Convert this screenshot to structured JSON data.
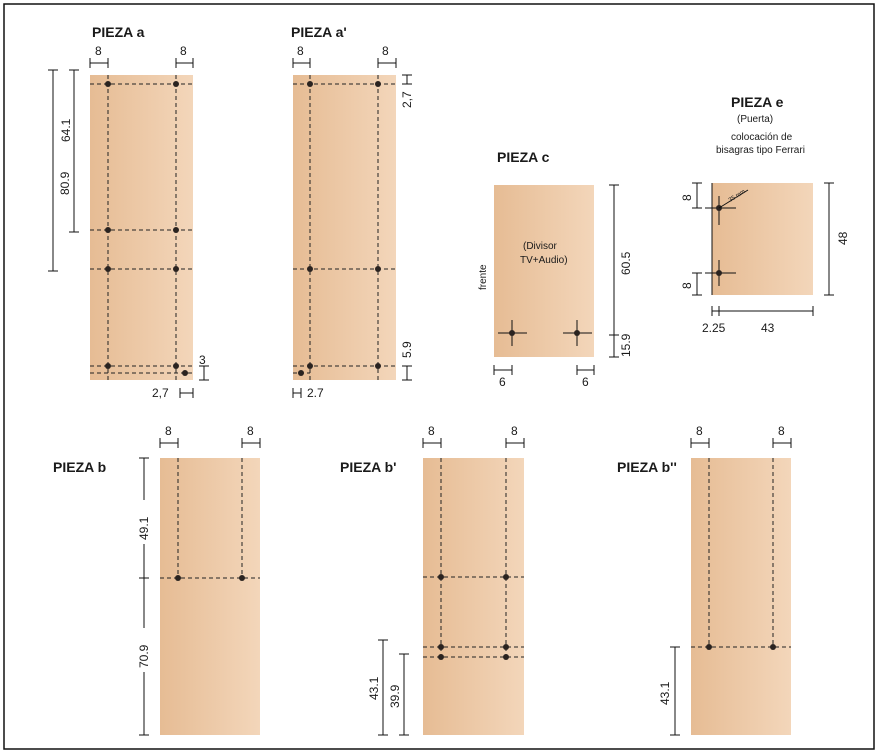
{
  "pieces": {
    "a": {
      "title": "PIEZA a",
      "dim_left": "8",
      "dim_right": "8",
      "dim_h1": "80.9",
      "dim_h2": "64.1",
      "dim_bot1": "3",
      "dim_bot2": "2,7"
    },
    "a2": {
      "title": "PIEZA a'",
      "dim_left": "8",
      "dim_right": "8",
      "dim_top": "2,7",
      "dim_bot1": "5.9",
      "dim_bot2": "2.7"
    },
    "c": {
      "title": "PIEZA c",
      "label": "(Divisor TV+Audio)",
      "label_line1": "(Divisor",
      "label_line2": "TV+Audio)",
      "side_label": "frente",
      "dim_h": "60.5",
      "dim_bot": "15.9",
      "dim_left": "6",
      "dim_right": "6"
    },
    "e": {
      "title": "PIEZA e",
      "subtitle": "(Puerta)",
      "note_line1": "colocación de",
      "note_line2": "bisagras tipo Ferrari",
      "dim_top": "8",
      "dim_bot": "8",
      "dim_h": "48",
      "dim_left": "2.25",
      "dim_w": "43",
      "hinge_label": "35 mm"
    },
    "b": {
      "title": "PIEZA b",
      "dim_left": "8",
      "dim_right": "8",
      "dim_top": "49.1",
      "dim_bot": "70.9"
    },
    "b2": {
      "title": "PIEZA b'",
      "dim_left": "8",
      "dim_right": "8",
      "dim_1": "43.1",
      "dim_2": "39.9"
    },
    "b3": {
      "title": "PIEZA b''",
      "dim_left": "8",
      "dim_right": "8",
      "dim_1": "43.1"
    }
  },
  "colors": {
    "wood_light": "#f2d2b4",
    "wood_dark": "#e4b98f",
    "line": "#222222"
  }
}
